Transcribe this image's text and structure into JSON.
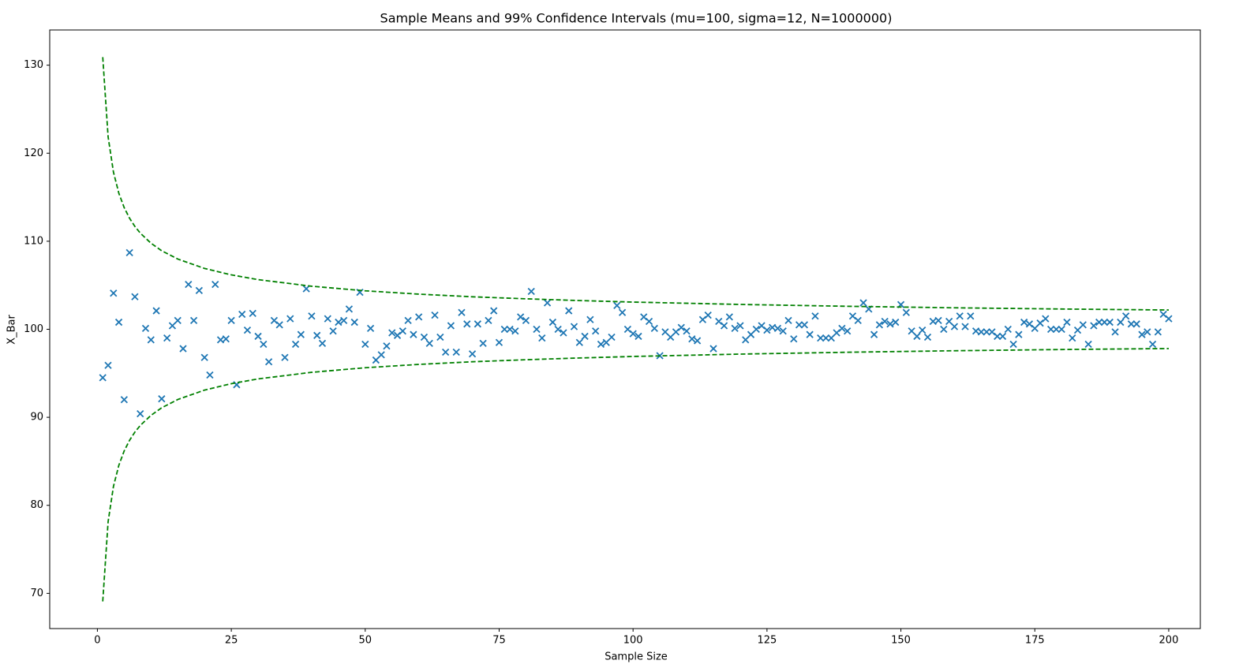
{
  "chart_data": {
    "type": "scatter",
    "title": "Sample Means and 99% Confidence Intervals (mu=100, sigma=12, N=1000000)",
    "x_label": "Sample Size",
    "y_label": "X_Bar",
    "xlim": [
      -8.9,
      205.9
    ],
    "ylim": [
      66.0,
      134.0
    ],
    "xticks": [
      0,
      25,
      50,
      75,
      100,
      125,
      150,
      175,
      200
    ],
    "yticks": [
      70,
      80,
      90,
      100,
      110,
      120,
      130
    ],
    "grid": false,
    "series": [
      {
        "mode": "markers",
        "marker": "x",
        "color": "#1f77b4",
        "x": [
          1,
          2,
          3,
          4,
          5,
          6,
          7,
          8,
          9,
          10,
          11,
          12,
          13,
          14,
          15,
          16,
          17,
          18,
          19,
          20,
          21,
          22,
          23,
          24,
          25,
          26,
          27,
          28,
          29,
          30,
          31,
          32,
          33,
          34,
          35,
          36,
          37,
          38,
          39,
          40,
          41,
          42,
          43,
          44,
          45,
          46,
          47,
          48,
          49,
          50,
          51,
          52,
          53,
          54,
          55,
          56,
          57,
          58,
          59,
          60,
          61,
          62,
          63,
          64,
          65,
          66,
          67,
          68,
          69,
          70,
          71,
          72,
          73,
          74,
          75,
          76,
          77,
          78,
          79,
          80,
          81,
          82,
          83,
          84,
          85,
          86,
          87,
          88,
          89,
          90,
          91,
          92,
          93,
          94,
          95,
          96,
          97,
          98,
          99,
          100,
          101,
          102,
          103,
          104,
          105,
          106,
          107,
          108,
          109,
          110,
          111,
          112,
          113,
          114,
          115,
          116,
          117,
          118,
          119,
          120,
          121,
          122,
          123,
          124,
          125,
          126,
          127,
          128,
          129,
          130,
          131,
          132,
          133,
          134,
          135,
          136,
          137,
          138,
          139,
          140,
          141,
          142,
          143,
          144,
          145,
          146,
          147,
          148,
          149,
          150,
          151,
          152,
          153,
          154,
          155,
          156,
          157,
          158,
          159,
          160,
          161,
          162,
          163,
          164,
          165,
          166,
          167,
          168,
          169,
          170,
          171,
          172,
          173,
          174,
          175,
          176,
          177,
          178,
          179,
          180,
          181,
          182,
          183,
          184,
          185,
          186,
          187,
          188,
          189,
          190,
          191,
          192,
          193,
          194,
          195,
          196,
          197,
          198,
          199,
          200
        ],
        "values": [
          94.5,
          95.9,
          104.1,
          100.8,
          92.0,
          108.7,
          103.7,
          90.4,
          100.1,
          98.8,
          102.1,
          92.1,
          99.0,
          100.4,
          101.0,
          97.8,
          105.1,
          101.0,
          104.4,
          96.8,
          94.8,
          105.1,
          98.8,
          98.9,
          101.0,
          93.7,
          101.7,
          99.9,
          101.8,
          99.2,
          98.3,
          96.3,
          101.0,
          100.5,
          96.8,
          101.2,
          98.3,
          99.4,
          104.6,
          101.5,
          99.3,
          98.4,
          101.2,
          99.8,
          100.8,
          101.0,
          102.3,
          100.8,
          104.2,
          98.3,
          100.1,
          96.5,
          97.1,
          98.1,
          99.6,
          99.3,
          99.8,
          101.0,
          99.4,
          101.4,
          99.1,
          98.4,
          101.6,
          99.1,
          97.4,
          100.4,
          97.4,
          101.9,
          100.6,
          97.2,
          100.6,
          98.4,
          101.0,
          102.1,
          98.5,
          100.0,
          100.0,
          99.8,
          101.4,
          101.0,
          104.3,
          100.0,
          99.0,
          103.0,
          100.8,
          100.0,
          99.6,
          102.1,
          100.3,
          98.5,
          99.2,
          101.1,
          99.8,
          98.3,
          98.5,
          99.1,
          102.7,
          101.9,
          100.0,
          99.5,
          99.2,
          101.4,
          100.9,
          100.1,
          97.0,
          99.7,
          99.1,
          99.7,
          100.2,
          99.8,
          98.9,
          98.7,
          101.1,
          101.6,
          97.8,
          100.9,
          100.4,
          101.4,
          100.1,
          100.4,
          98.8,
          99.4,
          100.0,
          100.4,
          99.9,
          100.2,
          100.1,
          99.8,
          101.0,
          98.9,
          100.5,
          100.5,
          99.4,
          101.5,
          99.0,
          99.0,
          99.0,
          99.6,
          100.1,
          99.8,
          101.5,
          101.0,
          103.0,
          102.3,
          99.4,
          100.5,
          100.9,
          100.6,
          100.8,
          102.8,
          101.9,
          99.8,
          99.2,
          99.9,
          99.1,
          100.9,
          101.0,
          100.0,
          100.9,
          100.3,
          101.5,
          100.3,
          101.5,
          99.8,
          99.7,
          99.7,
          99.7,
          99.2,
          99.2,
          100.0,
          98.3,
          99.4,
          100.8,
          100.6,
          100.1,
          100.7,
          101.2,
          100.0,
          100.0,
          100.0,
          100.8,
          99.0,
          99.9,
          100.5,
          98.3,
          100.4,
          100.8,
          100.8,
          100.8,
          99.7,
          100.8,
          101.5,
          100.6,
          100.6,
          99.4,
          99.7,
          98.3,
          99.7,
          101.7,
          101.2
        ]
      },
      {
        "mode": "line",
        "dashed": true,
        "color": "#008000",
        "x": [
          1,
          2,
          3,
          4,
          5,
          6,
          7,
          8,
          10,
          12,
          15,
          20,
          25,
          30,
          40,
          50,
          60,
          70,
          80,
          90,
          100,
          120,
          140,
          160,
          180,
          200
        ],
        "values": [
          130.91,
          121.86,
          117.85,
          115.46,
          113.82,
          112.62,
          111.68,
          110.93,
          109.78,
          108.92,
          107.98,
          106.91,
          106.18,
          105.64,
          104.89,
          104.37,
          103.99,
          103.69,
          103.46,
          103.26,
          103.09,
          102.82,
          102.61,
          102.44,
          102.3,
          102.19
        ]
      },
      {
        "mode": "line",
        "dashed": true,
        "color": "#008000",
        "x": [
          1,
          2,
          3,
          4,
          5,
          6,
          7,
          8,
          10,
          12,
          15,
          20,
          25,
          30,
          40,
          50,
          60,
          70,
          80,
          90,
          100,
          120,
          140,
          160,
          180,
          200
        ],
        "values": [
          69.09,
          78.14,
          82.15,
          84.54,
          86.18,
          87.38,
          88.32,
          89.07,
          90.22,
          91.08,
          92.02,
          93.09,
          93.82,
          94.36,
          95.11,
          95.63,
          96.01,
          96.31,
          96.54,
          96.74,
          96.91,
          97.18,
          97.39,
          97.56,
          97.7,
          97.81
        ]
      }
    ]
  }
}
